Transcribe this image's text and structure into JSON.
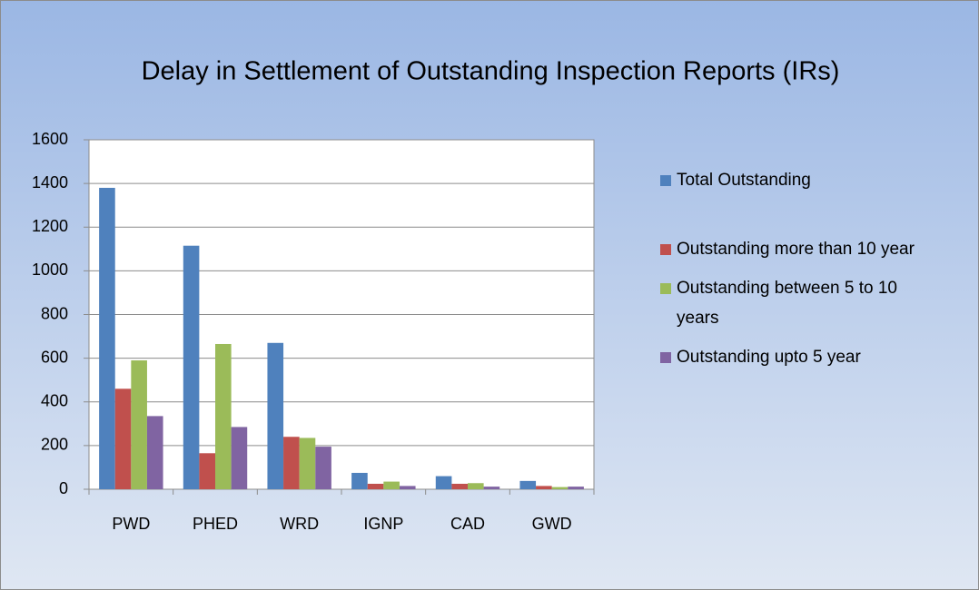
{
  "chart_data": {
    "type": "bar",
    "title": "Delay in Settlement of Outstanding Inspection Reports (IRs)",
    "categories": [
      "PWD",
      "PHED",
      "WRD",
      "IGNP",
      "CAD",
      "GWD"
    ],
    "series": [
      {
        "name": "Total Outstanding",
        "color": "#4f81bd",
        "values": [
          1380,
          1115,
          670,
          75,
          60,
          38
        ]
      },
      {
        "name": "Outstanding more than 10 year",
        "color": "#c0504d",
        "values": [
          460,
          165,
          240,
          25,
          25,
          15
        ]
      },
      {
        "name": "Outstanding between 5 to 10 years",
        "color": "#9bbb59",
        "values": [
          590,
          665,
          235,
          35,
          28,
          10
        ]
      },
      {
        "name": "Outstanding upto 5 year",
        "color": "#8064a2",
        "values": [
          335,
          285,
          195,
          15,
          12,
          12
        ]
      }
    ],
    "ylim": [
      0,
      1600
    ],
    "yticks": [
      0,
      200,
      400,
      600,
      800,
      1000,
      1200,
      1400,
      1600
    ],
    "grid": true,
    "legend": "right"
  }
}
